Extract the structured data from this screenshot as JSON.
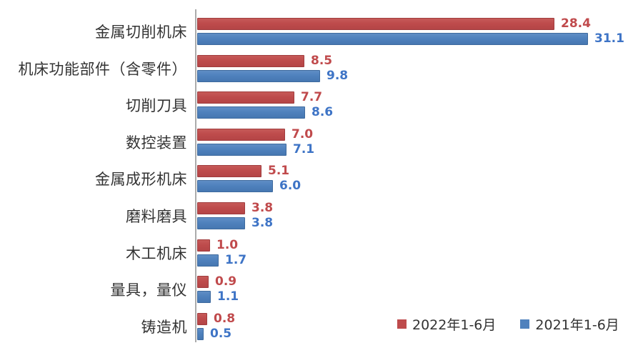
{
  "chart_data": {
    "type": "bar",
    "orientation": "horizontal",
    "title": "",
    "xlabel": "",
    "ylabel": "",
    "xlim": [
      0,
      35
    ],
    "grid": false,
    "legend_position": "bottom-right",
    "value_decimals": 1,
    "categories": [
      "金属切削机床",
      "机床功能部件（含零件）",
      "切削刀具",
      "数控装置",
      "金属成形机床",
      "磨料磨具",
      "木工机床",
      "量具，量仪",
      "铸造机"
    ],
    "series": [
      {
        "name": "2022年1-6月",
        "bar_color": "#be4b4c",
        "label_color": "#c04a4c",
        "values": [
          28.4,
          8.5,
          7.7,
          7.0,
          5.1,
          3.8,
          1.0,
          0.9,
          0.8
        ]
      },
      {
        "name": "2021年1-6月",
        "bar_color": "#4f81bd",
        "label_color": "#3e74c6",
        "values": [
          31.1,
          9.8,
          8.6,
          7.1,
          6.0,
          3.8,
          1.7,
          1.1,
          0.5
        ]
      }
    ],
    "axis_color": "#ababab",
    "background_color": "#ffffff"
  }
}
